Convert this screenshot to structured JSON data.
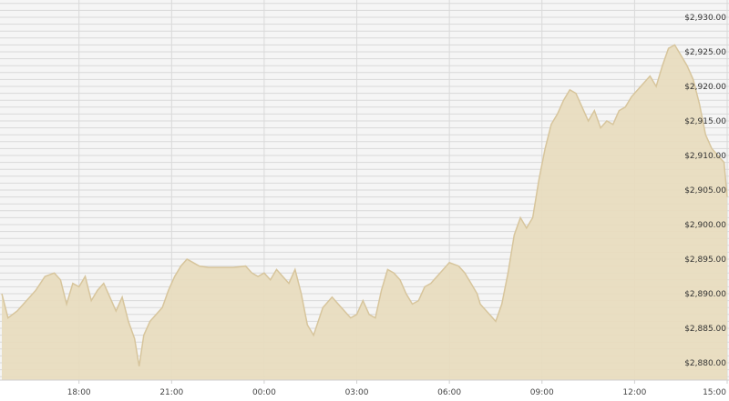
{
  "chart_data": {
    "type": "area",
    "title": "",
    "xlabel": "",
    "ylabel": "",
    "ylim": [
      2877.5,
      2932.5
    ],
    "grid": true,
    "x_ticks": [
      "18:00",
      "21:00",
      "00:00",
      "03:00",
      "06:00",
      "09:00",
      "12:00",
      "15:00"
    ],
    "y_ticks": [
      2880,
      2885,
      2890,
      2895,
      2900,
      2905,
      2910,
      2915,
      2920,
      2925,
      2930
    ],
    "y_tick_labels": [
      "$2,880.00",
      "$2,885.00",
      "$2,890.00",
      "$2,895.00",
      "$2,900.00",
      "$2,905.00",
      "$2,910.00",
      "$2,915.00",
      "$2,920.00",
      "$2,925.00",
      "$2,930.00"
    ],
    "x_hours": [
      15.5,
      15.7,
      16.0,
      16.3,
      16.6,
      16.9,
      17.2,
      17.4,
      17.6,
      17.8,
      18.0,
      18.2,
      18.4,
      18.6,
      18.8,
      19.0,
      19.2,
      19.4,
      19.6,
      19.8,
      19.95,
      20.1,
      20.3,
      20.5,
      20.7,
      20.9,
      21.1,
      21.3,
      21.5,
      21.7,
      21.9,
      22.2,
      22.6,
      23.0,
      23.4,
      23.6,
      23.8,
      24.0,
      24.2,
      24.4,
      24.6,
      24.8,
      25.0,
      25.2,
      25.4,
      25.6,
      25.9,
      26.2,
      26.5,
      26.8,
      27.0,
      27.2,
      27.4,
      27.6,
      27.8,
      28.0,
      28.2,
      28.4,
      28.6,
      28.8,
      29.0,
      29.2,
      29.4,
      29.6,
      29.8,
      30.0,
      30.3,
      30.5,
      30.7,
      30.9,
      31.0,
      31.1,
      31.3,
      31.5,
      31.7,
      31.9,
      32.1,
      32.3,
      32.5,
      32.7,
      32.9,
      33.1,
      33.3,
      33.5,
      33.7,
      33.9,
      34.1,
      34.3,
      34.5,
      34.7,
      34.9,
      35.1,
      35.3,
      35.5,
      35.7,
      35.9,
      36.1,
      36.3,
      36.5,
      36.7,
      36.9,
      37.1,
      37.3,
      37.5,
      37.7,
      37.9,
      38.1,
      38.3,
      38.5,
      38.7,
      38.9,
      39.0
    ],
    "series": [
      {
        "values": [
          2890.0,
          2886.5,
          2887.5,
          2889.0,
          2890.5,
          2892.5,
          2893.0,
          2892.0,
          2888.5,
          2891.5,
          2891.0,
          2892.5,
          2889.0,
          2890.5,
          2891.5,
          2889.5,
          2887.5,
          2889.5,
          2886.0,
          2883.5,
          2879.5,
          2884.0,
          2886.0,
          2887.0,
          2888.0,
          2890.5,
          2892.5,
          2894.0,
          2895.0,
          2894.5,
          2894.0,
          2893.8,
          2893.8,
          2893.8,
          2894.0,
          2893.0,
          2892.5,
          2893.0,
          2892.0,
          2893.5,
          2892.5,
          2891.5,
          2893.5,
          2890.0,
          2885.5,
          2884.0,
          2888.0,
          2889.5,
          2888.0,
          2886.5,
          2887.0,
          2889.0,
          2887.0,
          2886.5,
          2890.5,
          2893.5,
          2893.0,
          2892.0,
          2890.0,
          2888.5,
          2889.0,
          2891.0,
          2891.5,
          2892.5,
          2893.5,
          2894.5,
          2894.0,
          2893.0,
          2891.5,
          2890.0,
          2888.5,
          2888.0,
          2887.0,
          2886.0,
          2888.5,
          2893.0,
          2898.5,
          2901.0,
          2899.5,
          2901.0,
          2906.5,
          2911.0,
          2914.5,
          2916.0,
          2918.0,
          2919.5,
          2919.0,
          2917.0,
          2915.0,
          2916.5,
          2914.0,
          2915.0,
          2914.5,
          2916.5,
          2917.0,
          2918.5,
          2919.5,
          2920.5,
          2921.5,
          2920.0,
          2923.0,
          2925.5,
          2926.0,
          2924.5,
          2923.0,
          2921.0,
          2917.5,
          2913.0,
          2911.0,
          2910.0,
          2909.0,
          2904.0
        ]
      }
    ],
    "colors": {
      "fill": "#e8dcbf",
      "line": "#d7c59c",
      "grid": "#d9d9d9",
      "plot_background": "#f5f5f5"
    }
  }
}
